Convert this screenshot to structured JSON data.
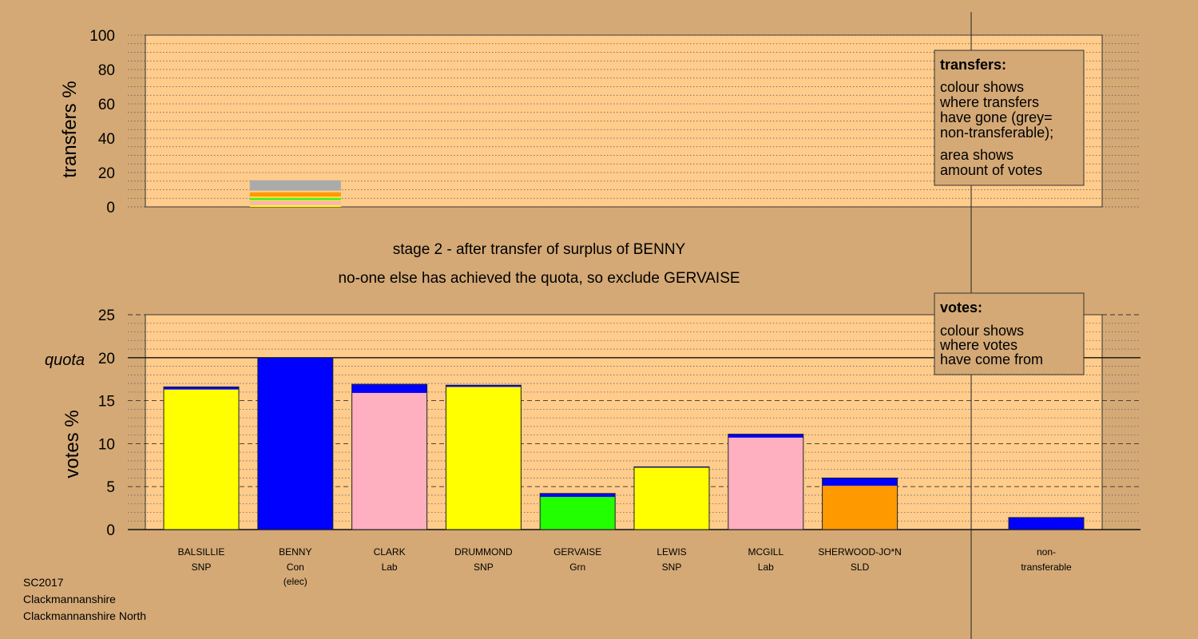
{
  "page": {
    "background": "#d4a976",
    "panel_color": "#ffcc8c",
    "footer": [
      "SC2017",
      "Clackmannanshire",
      "Clackmannanshire North"
    ]
  },
  "headings": {
    "stage": "stage 2 - after transfer of surplus of BENNY",
    "action": "no-one else has achieved the quota, so exclude GERVAISE"
  },
  "legends": {
    "transfers": {
      "title": "transfers:",
      "lines1": [
        "colour shows",
        "where transfers",
        "have gone (grey=",
        "non-transferable);"
      ],
      "lines2": [
        "area shows",
        "amount of votes"
      ]
    },
    "votes": {
      "title": "votes:",
      "lines": [
        "colour shows",
        "where votes",
        "have come from"
      ]
    }
  },
  "chart_data": [
    {
      "type": "bar",
      "stacked": true,
      "ylabel": "transfers %",
      "ylim": [
        0,
        100
      ],
      "yticks": [
        0,
        20,
        40,
        60,
        80,
        100
      ],
      "grid": "dotted",
      "bar": {
        "position": "BENNY",
        "segments": [
          {
            "value": 1.0,
            "color": "#ffff00"
          },
          {
            "value": 2.5,
            "color": "#ffb0c0"
          },
          {
            "value": 0.5,
            "color": "#ffff00"
          },
          {
            "value": 1.0,
            "color": "#22ff00"
          },
          {
            "value": 0.5,
            "color": "#ffb0c0"
          },
          {
            "value": 0.5,
            "color": "#ffff00"
          },
          {
            "value": 2.5,
            "color": "#ff9900"
          },
          {
            "value": 1.0,
            "color": "#ffcc8c"
          },
          {
            "value": 6.0,
            "color": "#aaaaaa"
          }
        ]
      }
    },
    {
      "type": "bar",
      "stacked": true,
      "ylabel": "votes %",
      "ylim": [
        0,
        25
      ],
      "yticks": [
        0,
        5,
        10,
        15,
        20,
        25
      ],
      "grid": "dotted",
      "quota": {
        "value": 20,
        "label": "quota"
      },
      "categories": [
        {
          "name": "BALSILLIE",
          "party": "SNP",
          "note": "",
          "segments": [
            {
              "value": 16.3,
              "color": "#ffff00"
            },
            {
              "value": 0.3,
              "color": "#0000ff"
            }
          ]
        },
        {
          "name": "BENNY",
          "party": "Con",
          "note": "(elec)",
          "segments": [
            {
              "value": 20.0,
              "color": "#0000ff"
            }
          ]
        },
        {
          "name": "CLARK",
          "party": "Lab",
          "note": "",
          "segments": [
            {
              "value": 15.9,
              "color": "#ffb0c0"
            },
            {
              "value": 1.0,
              "color": "#0000ff"
            }
          ]
        },
        {
          "name": "DRUMMOND",
          "party": "SNP",
          "note": "",
          "segments": [
            {
              "value": 16.6,
              "color": "#ffff00"
            },
            {
              "value": 0.2,
              "color": "#0000ff"
            }
          ]
        },
        {
          "name": "GERVAISE",
          "party": "Grn",
          "note": "",
          "segments": [
            {
              "value": 3.8,
              "color": "#22ff00"
            },
            {
              "value": 0.4,
              "color": "#0000ff"
            }
          ]
        },
        {
          "name": "LEWIS",
          "party": "SNP",
          "note": "",
          "segments": [
            {
              "value": 7.2,
              "color": "#ffff00"
            },
            {
              "value": 0.1,
              "color": "#0000ff"
            }
          ]
        },
        {
          "name": "MCGILL",
          "party": "Lab",
          "note": "",
          "segments": [
            {
              "value": 10.7,
              "color": "#ffb0c0"
            },
            {
              "value": 0.4,
              "color": "#0000ff"
            }
          ]
        },
        {
          "name": "SHERWOOD-JO*N",
          "party": "SLD",
          "note": "",
          "segments": [
            {
              "value": 5.1,
              "color": "#ff9900"
            },
            {
              "value": 0.9,
              "color": "#0000ff"
            }
          ]
        }
      ],
      "nontransferable": {
        "label1": "non-",
        "label2": "transferable",
        "segments": [
          {
            "value": 1.4,
            "color": "#0000ff"
          }
        ]
      }
    }
  ]
}
